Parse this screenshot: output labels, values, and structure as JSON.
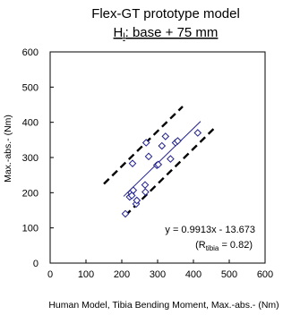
{
  "chart_data": {
    "type": "scatter",
    "title": "Flex-GT prototype model",
    "subtitle_main": "H",
    "subtitle_sub": "l",
    "subtitle_rest": ": base + 75 mm",
    "xlabel": "Human Model, Tibia Bending Moment, Max.-abs.- (Nm)",
    "ylabel": "Max.-abs.- (Nm)",
    "xlim": [
      0,
      600
    ],
    "ylim": [
      0,
      600
    ],
    "x_ticks": [
      "0",
      "100",
      "200",
      "300",
      "400",
      "500",
      "600"
    ],
    "y_ticks": [
      "0",
      "100",
      "200",
      "300",
      "400",
      "500",
      "600"
    ],
    "grid": false,
    "marker": "diamond",
    "marker_color": "#1f1f8f",
    "points": [
      {
        "x": 210,
        "y": 140
      },
      {
        "x": 222,
        "y": 188
      },
      {
        "x": 226,
        "y": 200
      },
      {
        "x": 228,
        "y": 192
      },
      {
        "x": 230,
        "y": 283
      },
      {
        "x": 232,
        "y": 207
      },
      {
        "x": 240,
        "y": 168
      },
      {
        "x": 242,
        "y": 178
      },
      {
        "x": 265,
        "y": 222
      },
      {
        "x": 266,
        "y": 202
      },
      {
        "x": 268,
        "y": 342
      },
      {
        "x": 275,
        "y": 303
      },
      {
        "x": 298,
        "y": 278
      },
      {
        "x": 302,
        "y": 280
      },
      {
        "x": 312,
        "y": 333
      },
      {
        "x": 322,
        "y": 360
      },
      {
        "x": 336,
        "y": 296
      },
      {
        "x": 350,
        "y": 342
      },
      {
        "x": 356,
        "y": 347
      },
      {
        "x": 412,
        "y": 370
      }
    ],
    "regression": {
      "slope": 0.9913,
      "intercept": -13.673,
      "x_range": [
        205,
        420
      ],
      "color": "#1f1f8f"
    },
    "bounds": [
      {
        "name": "upper",
        "x_range": [
          150,
          370
        ],
        "offset": 75
      },
      {
        "name": "lower",
        "x_range": [
          210,
          460
        ],
        "offset": -75
      }
    ],
    "annotation_equation": "y = 0.9913x - 13.673",
    "annotation_r_prefix": "(R",
    "annotation_r_sub": "tibia",
    "annotation_r_rest": " = 0.82)"
  }
}
